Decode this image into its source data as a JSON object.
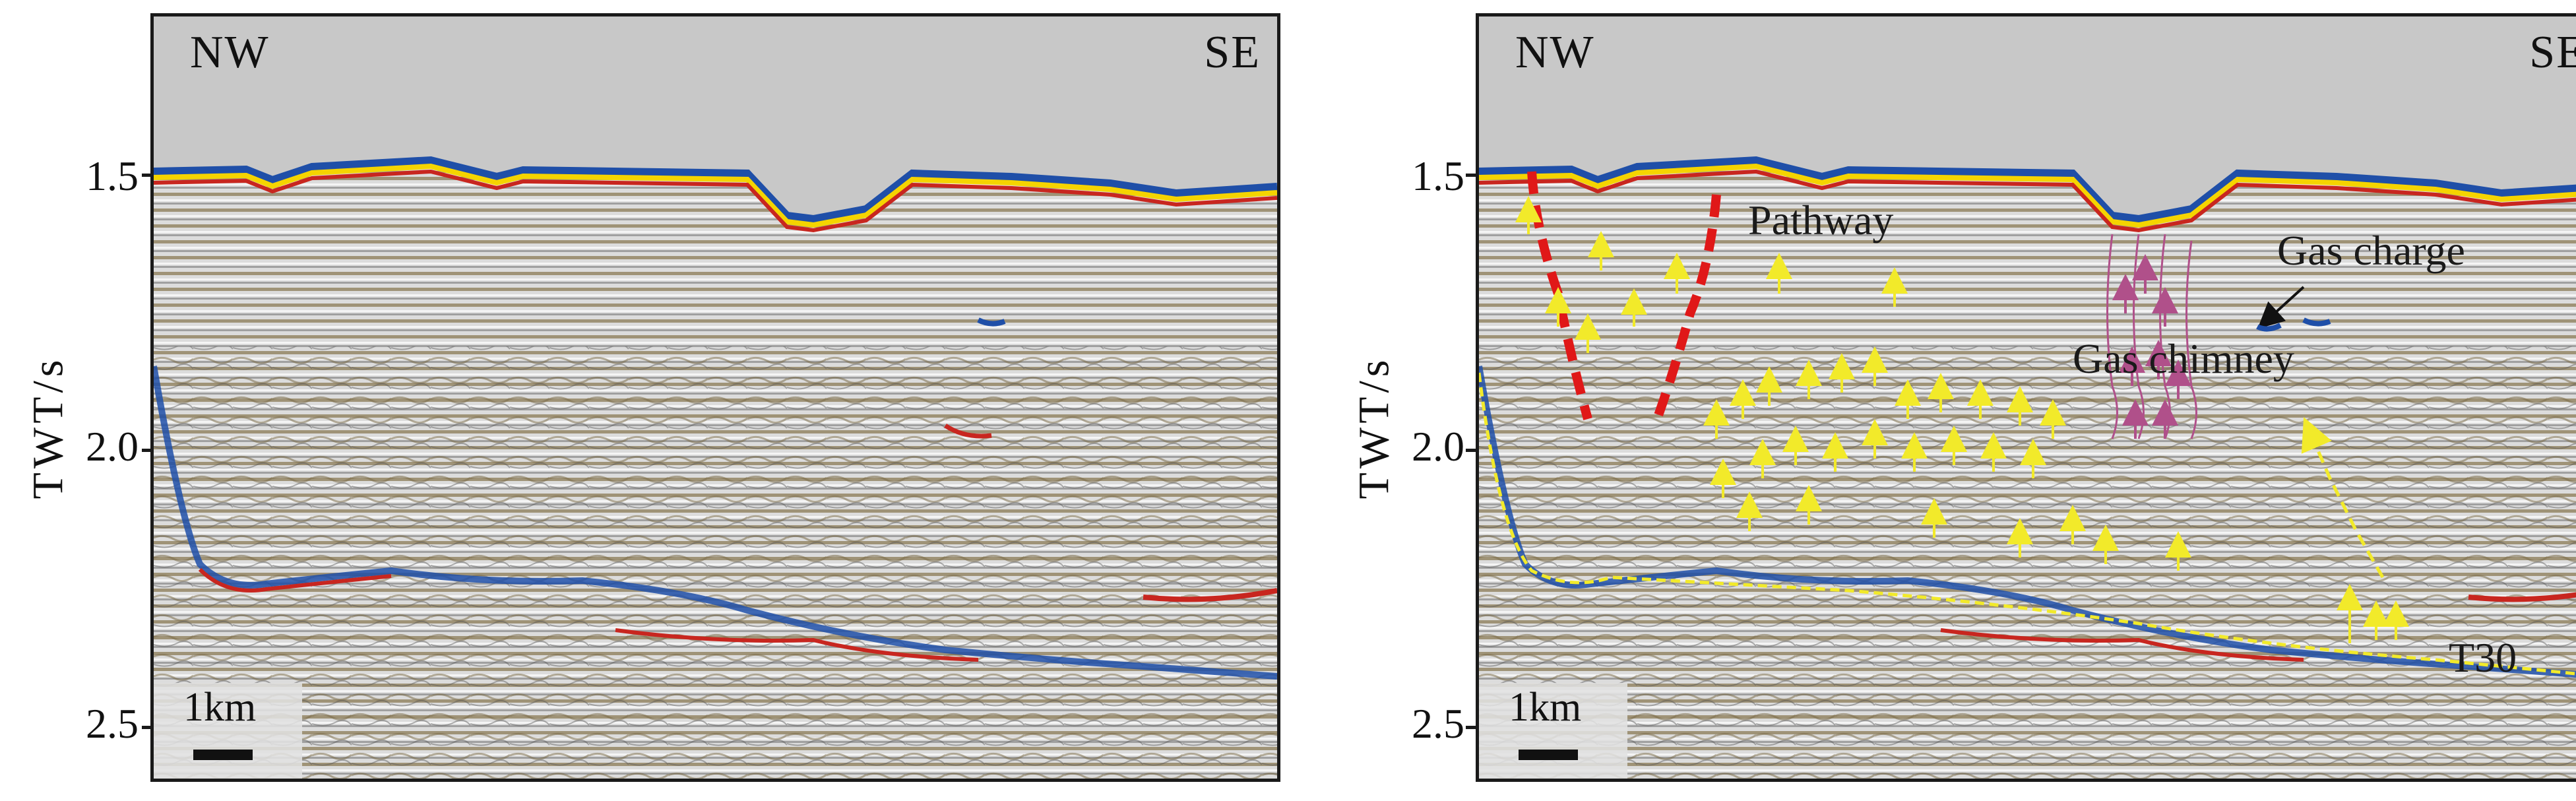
{
  "figure": {
    "y_axis_label": "TWT/s",
    "y_ticks": [
      "1.5",
      "2.0",
      "2.5"
    ],
    "left_panel": {
      "direction_left": "NW",
      "direction_right": "SE",
      "scale_label": "1km"
    },
    "right_panel": {
      "direction_left": "NW",
      "direction_right": "SE",
      "scale_label": "1km",
      "annotations": {
        "pathway": "Pathway",
        "gas_charge": "Gas charge",
        "gas_chimney": "Gas chimney",
        "horizon": "T30"
      }
    }
  },
  "colors": {
    "seafloor_yellow": "#f5d400",
    "seafloor_blue": "#1f4fa8",
    "seafloor_red": "#c8261f",
    "water": "#c8c8c8",
    "pathway_red": "#e01818",
    "migration_arrow": "#f2ea2a",
    "chimney_purple": "#b0508a"
  }
}
